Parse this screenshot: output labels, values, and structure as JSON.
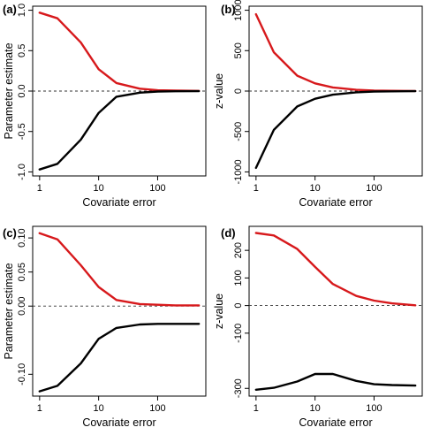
{
  "colors": {
    "red": "#d7191c",
    "black": "#000000"
  },
  "chart_data": [
    {
      "type": "line",
      "panel_label": "(a)",
      "xlabel": "Covariate error",
      "ylabel": "Parameter estimate",
      "x_scale": "log",
      "x_ticks": [
        1,
        10,
        100
      ],
      "x_tick_labels": [
        "1",
        "10",
        "100"
      ],
      "xlim": [
        1,
        500
      ],
      "y_ticks": [
        -1.0,
        -0.5,
        0.0,
        0.5,
        1.0
      ],
      "y_tick_labels": [
        "-1.0",
        "-0.5",
        "0.0",
        "0.5",
        "1.0"
      ],
      "ylim": [
        -1.05,
        1.05
      ],
      "reference_line": 0,
      "x": [
        1,
        2,
        5,
        10,
        20,
        50,
        100,
        200,
        500
      ],
      "series": [
        {
          "color": "red",
          "values": [
            0.97,
            0.9,
            0.6,
            0.27,
            0.1,
            0.03,
            0.01,
            0.005,
            0.002
          ]
        },
        {
          "color": "black",
          "values": [
            -0.97,
            -0.9,
            -0.6,
            -0.27,
            -0.07,
            -0.02,
            -0.005,
            -0.002,
            -0.001
          ]
        }
      ]
    },
    {
      "type": "line",
      "panel_label": "(b)",
      "xlabel": "Covariate error",
      "ylabel": "z-value",
      "x_scale": "log",
      "x_ticks": [
        1,
        10,
        100
      ],
      "x_tick_labels": [
        "1",
        "10",
        "100"
      ],
      "xlim": [
        1,
        500
      ],
      "y_ticks": [
        -1000,
        -500,
        0,
        500,
        1000
      ],
      "y_tick_labels": [
        "-1000",
        "-500",
        "0",
        "500",
        "1000"
      ],
      "ylim": [
        -1050,
        1050
      ],
      "reference_line": 0,
      "x": [
        1,
        2,
        5,
        10,
        20,
        50,
        100,
        200,
        500
      ],
      "series": [
        {
          "color": "red",
          "values": [
            950,
            480,
            190,
            95,
            45,
            15,
            6,
            3,
            1
          ]
        },
        {
          "color": "black",
          "values": [
            -950,
            -480,
            -190,
            -95,
            -45,
            -15,
            -6,
            -3,
            -1
          ]
        }
      ]
    },
    {
      "type": "line",
      "panel_label": "(c)",
      "xlabel": "Covariate error",
      "ylabel": "Parameter estimate",
      "x_scale": "log",
      "x_ticks": [
        1,
        10,
        100
      ],
      "x_tick_labels": [
        "1",
        "10",
        "100"
      ],
      "xlim": [
        1,
        500
      ],
      "y_ticks": [
        -0.1,
        0.0,
        0.05,
        0.1
      ],
      "y_tick_labels": [
        "-0.10",
        "0.00",
        "0.05",
        "0.10"
      ],
      "ylim": [
        -0.132,
        0.117
      ],
      "reference_line": 0,
      "x": [
        1,
        2,
        5,
        10,
        20,
        50,
        100,
        200,
        500
      ],
      "series": [
        {
          "color": "red",
          "values": [
            0.107,
            0.098,
            0.06,
            0.028,
            0.009,
            0.003,
            0.002,
            0.001,
            0.001
          ]
        },
        {
          "color": "black",
          "values": [
            -0.125,
            -0.117,
            -0.084,
            -0.048,
            -0.032,
            -0.027,
            -0.026,
            -0.026,
            -0.026
          ]
        }
      ]
    },
    {
      "type": "line",
      "panel_label": "(d)",
      "xlabel": "Covariate error",
      "ylabel": "z-value",
      "x_scale": "log",
      "x_ticks": [
        1,
        10,
        100
      ],
      "x_tick_labels": [
        "1",
        "10",
        "100"
      ],
      "xlim": [
        1,
        500
      ],
      "y_ticks": [
        -300,
        -100,
        0,
        100,
        200
      ],
      "y_tick_labels": [
        "-300",
        "-100",
        "0",
        "100",
        "200"
      ],
      "ylim": [
        -328,
        287
      ],
      "reference_line": 0,
      "x": [
        1,
        2,
        5,
        10,
        20,
        50,
        100,
        200,
        500
      ],
      "series": [
        {
          "color": "red",
          "values": [
            263,
            254,
            205,
            140,
            78,
            35,
            18,
            8,
            1
          ]
        },
        {
          "color": "black",
          "values": [
            -305,
            -298,
            -275,
            -248,
            -248,
            -273,
            -285,
            -288,
            -290
          ]
        }
      ]
    }
  ]
}
